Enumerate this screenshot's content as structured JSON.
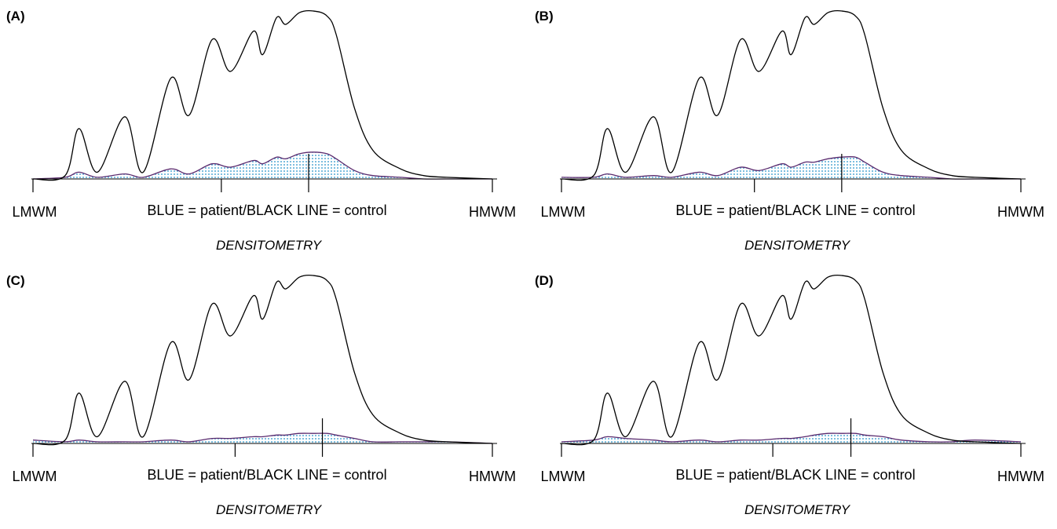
{
  "panels": [
    {
      "label": "(A)",
      "left_label": "LMWM",
      "right_label": "HMWM",
      "legend": "BLUE = patient/BLACK LINE = control",
      "caption": "DENSITOMETRY"
    },
    {
      "label": "(B)",
      "left_label": "LMWM",
      "right_label": "HMWM",
      "legend": "BLUE = patient/BLACK LINE = control",
      "caption": "DENSITOMETRY"
    },
    {
      "label": "(C)",
      "left_label": "LMWM",
      "right_label": "HMWM",
      "legend": "BLUE = patient/BLACK LINE = control",
      "caption": "DENSITOMETRY"
    },
    {
      "label": "(D)",
      "left_label": "LMWM",
      "right_label": "HMWM",
      "legend": "BLUE = patient/BLACK LINE = control",
      "caption": "DENSITOMETRY"
    }
  ],
  "colors": {
    "control_line": "#000000",
    "patient_outline": "#5a2a6e",
    "patient_fill_dots": "#1f8fc8",
    "axis": "#000000"
  },
  "chart_data": [
    {
      "type": "area",
      "panel": "(A)",
      "x": [
        0,
        0.07,
        0.1,
        0.14,
        0.2,
        0.24,
        0.3,
        0.34,
        0.39,
        0.43,
        0.48,
        0.5,
        0.53,
        0.55,
        0.58,
        0.61,
        0.64,
        0.66,
        0.7,
        0.74,
        0.8,
        0.85,
        0.9,
        1.0
      ],
      "series": [
        {
          "name": "BLACK LINE = control",
          "values": [
            0.0,
            0.02,
            0.3,
            0.04,
            0.37,
            0.04,
            0.6,
            0.38,
            0.83,
            0.64,
            0.88,
            0.74,
            0.96,
            0.92,
            0.99,
            1.0,
            0.97,
            0.86,
            0.42,
            0.17,
            0.06,
            0.02,
            0.01,
            0.0
          ]
        },
        {
          "name": "BLUE = patient",
          "values": [
            0.0,
            0.01,
            0.04,
            0.01,
            0.03,
            0.01,
            0.06,
            0.03,
            0.09,
            0.07,
            0.11,
            0.09,
            0.13,
            0.12,
            0.15,
            0.16,
            0.15,
            0.12,
            0.05,
            0.02,
            0.01,
            0.0,
            0.0,
            0.0
          ]
        }
      ],
      "ticks": [
        0,
        0.41,
        0.6,
        1.0
      ]
    },
    {
      "type": "area",
      "panel": "(B)",
      "x": [
        0,
        0.07,
        0.1,
        0.14,
        0.2,
        0.24,
        0.3,
        0.34,
        0.39,
        0.43,
        0.48,
        0.5,
        0.53,
        0.55,
        0.58,
        0.61,
        0.64,
        0.66,
        0.7,
        0.74,
        0.8,
        0.85,
        0.9,
        1.0
      ],
      "series": [
        {
          "name": "BLACK LINE = control",
          "values": [
            0.0,
            0.02,
            0.3,
            0.04,
            0.37,
            0.04,
            0.6,
            0.38,
            0.83,
            0.64,
            0.88,
            0.74,
            0.96,
            0.92,
            0.99,
            1.0,
            0.97,
            0.86,
            0.42,
            0.17,
            0.06,
            0.02,
            0.01,
            0.0
          ]
        },
        {
          "name": "BLUE = patient",
          "values": [
            0.01,
            0.01,
            0.03,
            0.01,
            0.02,
            0.01,
            0.04,
            0.02,
            0.07,
            0.05,
            0.09,
            0.07,
            0.1,
            0.1,
            0.12,
            0.13,
            0.13,
            0.1,
            0.04,
            0.02,
            0.01,
            0.0,
            0.0,
            0.0
          ]
        }
      ],
      "ticks": [
        0,
        0.42,
        0.61,
        1.0
      ]
    },
    {
      "type": "area",
      "panel": "(C)",
      "x": [
        0,
        0.07,
        0.1,
        0.14,
        0.2,
        0.24,
        0.3,
        0.34,
        0.39,
        0.43,
        0.48,
        0.5,
        0.53,
        0.55,
        0.58,
        0.61,
        0.64,
        0.66,
        0.7,
        0.74,
        0.8,
        0.85,
        0.9,
        1.0
      ],
      "series": [
        {
          "name": "BLACK LINE = control",
          "values": [
            0.0,
            0.02,
            0.3,
            0.04,
            0.37,
            0.04,
            0.6,
            0.38,
            0.83,
            0.64,
            0.88,
            0.74,
            0.96,
            0.92,
            0.99,
            1.0,
            0.97,
            0.86,
            0.42,
            0.17,
            0.06,
            0.02,
            0.01,
            0.0
          ]
        },
        {
          "name": "BLUE = patient",
          "values": [
            0.02,
            0.01,
            0.02,
            0.01,
            0.01,
            0.01,
            0.02,
            0.01,
            0.03,
            0.03,
            0.04,
            0.04,
            0.05,
            0.05,
            0.06,
            0.06,
            0.06,
            0.05,
            0.03,
            0.01,
            0.01,
            0.01,
            0.01,
            0.0
          ]
        }
      ],
      "ticks": [
        0,
        0.44,
        0.63,
        1.0
      ]
    },
    {
      "type": "area",
      "panel": "(D)",
      "x": [
        0,
        0.07,
        0.1,
        0.14,
        0.2,
        0.24,
        0.3,
        0.34,
        0.39,
        0.43,
        0.48,
        0.5,
        0.53,
        0.55,
        0.58,
        0.61,
        0.64,
        0.66,
        0.7,
        0.74,
        0.8,
        0.85,
        0.9,
        1.0
      ],
      "series": [
        {
          "name": "BLACK LINE = control",
          "values": [
            0.0,
            0.02,
            0.3,
            0.04,
            0.37,
            0.04,
            0.6,
            0.38,
            0.83,
            0.64,
            0.88,
            0.74,
            0.96,
            0.92,
            0.99,
            1.0,
            0.97,
            0.86,
            0.42,
            0.17,
            0.06,
            0.02,
            0.01,
            0.0
          ]
        },
        {
          "name": "BLUE = patient",
          "values": [
            0.01,
            0.02,
            0.04,
            0.03,
            0.02,
            0.01,
            0.02,
            0.01,
            0.02,
            0.02,
            0.03,
            0.03,
            0.04,
            0.05,
            0.06,
            0.06,
            0.06,
            0.05,
            0.04,
            0.02,
            0.01,
            0.01,
            0.02,
            0.01
          ]
        }
      ],
      "ticks": [
        0,
        0.46,
        0.63,
        1.0
      ]
    }
  ]
}
